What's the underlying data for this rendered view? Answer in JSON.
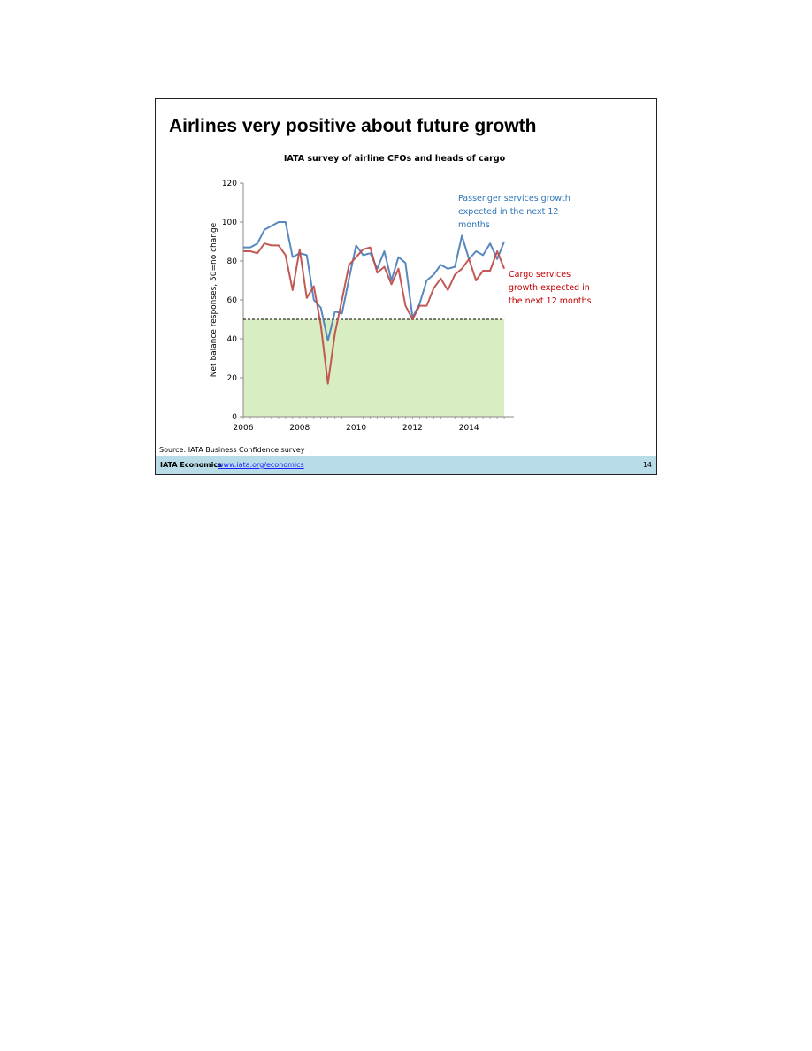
{
  "slide": {
    "title": "Airlines very positive about future growth",
    "source": "Source: IATA Business Confidence survey",
    "footer_brand": "IATA Economics",
    "footer_link": "www.iata.org/economics",
    "page_number": "14"
  },
  "chart_data": {
    "type": "line",
    "title": "IATA survey of airline CFOs and heads of cargo",
    "xlabel": "",
    "ylabel": "Net balance responses, 50=no change",
    "xlim": [
      2006,
      2016
    ],
    "ylim": [
      0,
      120
    ],
    "x_ticks": [
      2006,
      2008,
      2010,
      2012,
      2014
    ],
    "y_ticks": [
      0,
      20,
      40,
      60,
      80,
      100,
      120
    ],
    "reference_line": 50,
    "shaded_region": {
      "y_from": 0,
      "y_to": 50,
      "x_from": 2006,
      "x_to": 2015.25,
      "color": "#d8edc2"
    },
    "grid": false,
    "series": [
      {
        "name": "Passenger services growth expected in the next 12 months",
        "color": "#4a7ebb",
        "x": [
          2006.0,
          2006.25,
          2006.5,
          2006.75,
          2007.0,
          2007.25,
          2007.5,
          2007.75,
          2008.0,
          2008.25,
          2008.5,
          2008.75,
          2009.0,
          2009.25,
          2009.5,
          2009.75,
          2010.0,
          2010.25,
          2010.5,
          2010.75,
          2011.0,
          2011.25,
          2011.5,
          2011.75,
          2012.0,
          2012.25,
          2012.5,
          2012.75,
          2013.0,
          2013.25,
          2013.5,
          2013.75,
          2014.0,
          2014.25,
          2014.5,
          2014.75,
          2015.0,
          2015.25
        ],
        "values": [
          87,
          87,
          89,
          96,
          98,
          100,
          100,
          82,
          84,
          83,
          60,
          56,
          39,
          54,
          53,
          71,
          88,
          83,
          84,
          76,
          85,
          70,
          82,
          79,
          51,
          58,
          70,
          73,
          78,
          76,
          77,
          93,
          81,
          85,
          83,
          89,
          81,
          90
        ]
      },
      {
        "name": "Cargo services growth expected in the next 12 months",
        "color": "#be4b48",
        "x": [
          2006.0,
          2006.25,
          2006.5,
          2006.75,
          2007.0,
          2007.25,
          2007.5,
          2007.75,
          2008.0,
          2008.25,
          2008.5,
          2008.75,
          2009.0,
          2009.25,
          2009.5,
          2009.75,
          2010.0,
          2010.25,
          2010.5,
          2010.75,
          2011.0,
          2011.25,
          2011.5,
          2011.75,
          2012.0,
          2012.25,
          2012.5,
          2012.75,
          2013.0,
          2013.25,
          2013.5,
          2013.75,
          2014.0,
          2014.25,
          2014.5,
          2014.75,
          2015.0,
          2015.25
        ],
        "values": [
          85,
          85,
          84,
          89,
          88,
          88,
          83,
          65,
          86,
          61,
          67,
          47,
          17,
          43,
          60,
          78,
          82,
          86,
          87,
          74,
          77,
          68,
          76,
          57,
          50,
          57,
          57,
          66,
          71,
          65,
          73,
          76,
          81,
          70,
          75,
          75,
          85,
          76
        ]
      }
    ],
    "annotations": [
      {
        "series": 0,
        "lines": [
          "Passenger services growth",
          "expected in the next 12",
          "months"
        ],
        "color": "#2e75b6"
      },
      {
        "series": 1,
        "lines": [
          "Cargo services",
          "growth expected in",
          "the next 12 months"
        ],
        "color": "#c00000"
      }
    ]
  }
}
